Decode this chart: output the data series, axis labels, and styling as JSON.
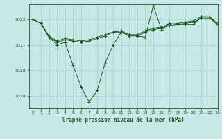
{
  "xlabel": "Graphe pression niveau de la mer (hPa)",
  "ylabel": "",
  "bg_color": "#c8e8e8",
  "grid_color": "#a8cccc",
  "line_color": "#1a5c1a",
  "xlim": [
    -0.5,
    23
  ],
  "ylim": [
    1018.5,
    1022.6
  ],
  "yticks": [
    1019,
    1020,
    1021,
    1022
  ],
  "xticks": [
    0,
    1,
    2,
    3,
    4,
    5,
    6,
    7,
    8,
    9,
    10,
    11,
    12,
    13,
    14,
    15,
    16,
    17,
    18,
    19,
    20,
    21,
    22,
    23
  ],
  "series": [
    [
      1022.0,
      1021.85,
      1021.3,
      1021.0,
      1021.1,
      1020.2,
      1019.35,
      1018.75,
      1019.2,
      1020.3,
      1021.0,
      1021.5,
      1021.35,
      1021.35,
      1021.3,
      1022.55,
      1021.6,
      1021.85,
      1021.8,
      1021.8,
      1021.8,
      1022.1,
      1022.1,
      1021.8
    ],
    [
      1022.0,
      1021.85,
      1021.3,
      1021.1,
      1021.2,
      1021.15,
      1021.1,
      1021.15,
      1021.25,
      1021.35,
      1021.5,
      1021.5,
      1021.4,
      1021.35,
      1021.5,
      1021.6,
      1021.65,
      1021.75,
      1021.8,
      1021.85,
      1021.9,
      1022.05,
      1022.05,
      1021.8
    ],
    [
      1022.0,
      1021.85,
      1021.35,
      1021.15,
      1021.25,
      1021.2,
      1021.15,
      1021.2,
      1021.3,
      1021.4,
      1021.5,
      1021.55,
      1021.4,
      1021.4,
      1021.55,
      1021.65,
      1021.7,
      1021.8,
      1021.85,
      1021.9,
      1021.95,
      1022.1,
      1022.1,
      1021.85
    ]
  ]
}
